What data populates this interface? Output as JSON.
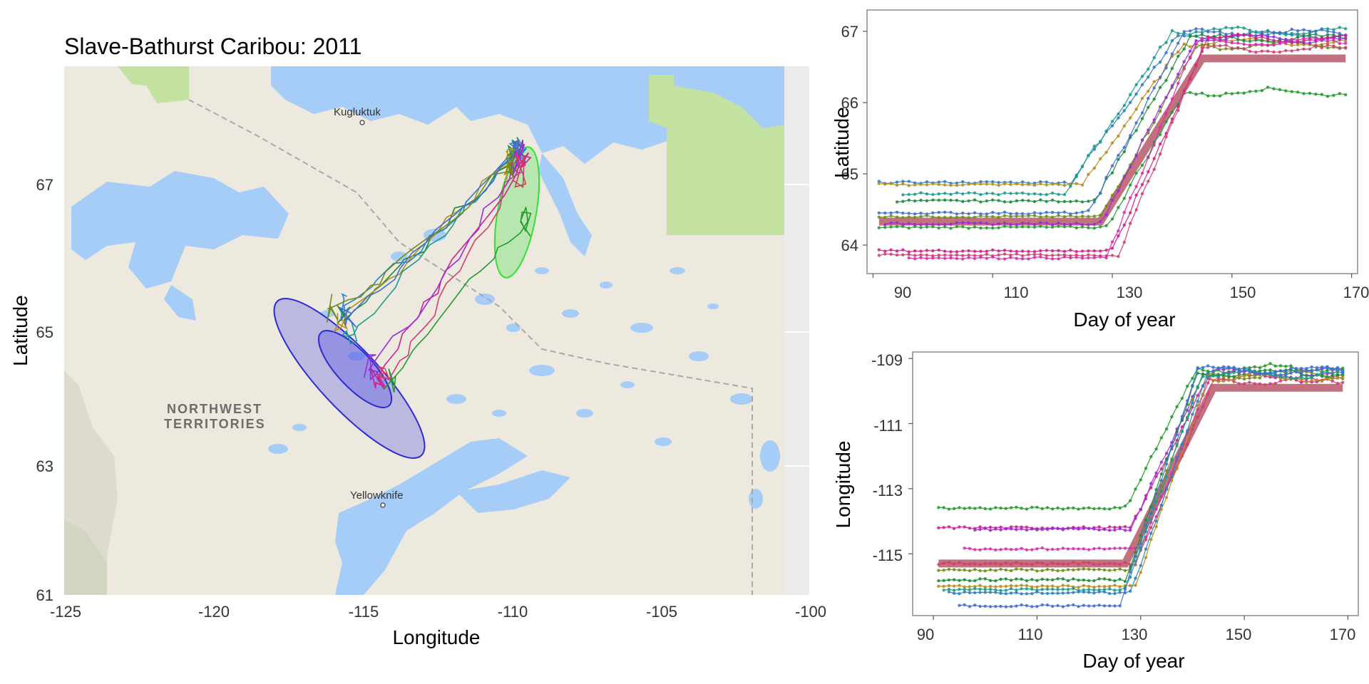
{
  "chart_data": [
    {
      "type": "map",
      "title": "Slave-Bathurst Caribou: 2011",
      "xlabel": "Longitude",
      "ylabel": "Latitude",
      "xlim": [
        -125,
        -100
      ],
      "ylim": [
        61,
        68.2
      ],
      "xticks": [
        "-125",
        "-120",
        "-115",
        "-110",
        "-105",
        "-100"
      ],
      "yticks": [
        "61",
        "63",
        "65",
        "67"
      ],
      "place_labels": [
        "Kugluktuk",
        "Yellowknife"
      ],
      "region_labels": [
        "NORTHWEST",
        "TERRITORIES"
      ],
      "colors": {
        "water": "#a6cdf7",
        "land": "#ede9df",
        "park": "#c3e2a0",
        "outside": "#ebebeb",
        "winter_ellipse": "#2b2bd6",
        "summer_ellipse": "#33e033"
      },
      "ellipses": [
        {
          "name": "winter",
          "center": [
            -115.2,
            64.2
          ],
          "color": "#2b2bd6"
        },
        {
          "name": "winter-inner",
          "center": [
            -115.0,
            64.35
          ],
          "color": "#2b2bd6"
        },
        {
          "name": "summer",
          "center": [
            -110.05,
            66.5
          ],
          "color": "#33e033"
        }
      ],
      "series": [
        {
          "color": "#1a8c3a",
          "start": [
            -115.6,
            64.8
          ],
          "mid": [
            -113.4,
            65.6
          ],
          "end": [
            -109.9,
            66.9
          ]
        },
        {
          "color": "#b58d1c",
          "start": [
            -115.8,
            64.7
          ],
          "mid": [
            -113.0,
            65.7
          ],
          "end": [
            -110.0,
            66.9
          ]
        },
        {
          "color": "#1a9c8c",
          "start": [
            -115.4,
            64.6
          ],
          "mid": [
            -112.8,
            65.6
          ],
          "end": [
            -109.8,
            67.0
          ]
        },
        {
          "color": "#2b7fbf",
          "start": [
            -115.7,
            64.9
          ],
          "mid": [
            -112.6,
            65.8
          ],
          "end": [
            -109.7,
            67.05
          ]
        },
        {
          "color": "#cf1f8c",
          "start": [
            -114.5,
            64.0
          ],
          "mid": [
            -112.4,
            65.2
          ],
          "end": [
            -109.6,
            66.9
          ]
        },
        {
          "color": "#9c2bd6",
          "start": [
            -114.7,
            64.1
          ],
          "mid": [
            -112.0,
            65.3
          ],
          "end": [
            -109.8,
            66.95
          ]
        },
        {
          "color": "#1f9c2b",
          "start": [
            -114.0,
            63.9
          ],
          "mid": [
            -111.6,
            65.2
          ],
          "end": [
            -109.5,
            66.1
          ]
        },
        {
          "color": "#cf3f6f",
          "start": [
            -114.2,
            64.0
          ],
          "mid": [
            -112.2,
            65.0
          ],
          "end": [
            -109.7,
            66.8
          ]
        },
        {
          "color": "#6f8c1a",
          "start": [
            -115.9,
            64.9
          ],
          "mid": [
            -113.6,
            65.5
          ],
          "end": [
            -110.1,
            66.85
          ]
        },
        {
          "color": "#3f6fcf",
          "start": [
            -115.5,
            64.8
          ],
          "mid": [
            -112.9,
            65.7
          ],
          "end": [
            -109.9,
            67.0
          ]
        }
      ]
    },
    {
      "type": "scatter-line",
      "xlabel": "Day of year",
      "ylabel": "Latitude",
      "xlim": [
        89,
        171
      ],
      "ylim": [
        63.6,
        67.3
      ],
      "xticks": [
        "90",
        "110",
        "130",
        "150",
        "170"
      ],
      "yticks": [
        "64",
        "65",
        "66",
        "67"
      ],
      "fit_line": {
        "color": "#b34d5e",
        "x": [
          91,
          128,
          145,
          169
        ],
        "y": [
          64.33,
          64.33,
          66.62,
          66.62
        ]
      },
      "series": [
        {
          "color": "#2b7fbf",
          "baseline": 64.88,
          "start": 91,
          "rise_start": 123,
          "rise_end": 141,
          "plateau": 66.95
        },
        {
          "color": "#b58d1c",
          "baseline": 64.85,
          "start": 91,
          "rise_start": 125,
          "rise_end": 142,
          "plateau": 66.85
        },
        {
          "color": "#1a9c8c",
          "baseline": 64.72,
          "start": 95,
          "rise_start": 122,
          "rise_end": 140,
          "plateau": 67.0
        },
        {
          "color": "#1a8c3a",
          "baseline": 64.62,
          "start": 94,
          "rise_start": 127,
          "rise_end": 143,
          "plateau": 66.9
        },
        {
          "color": "#3f6fcf",
          "baseline": 64.45,
          "start": 91,
          "rise_start": 126,
          "rise_end": 142,
          "plateau": 66.98
        },
        {
          "color": "#6f8c1a",
          "baseline": 64.4,
          "start": 91,
          "rise_start": 128,
          "rise_end": 144,
          "plateau": 66.8
        },
        {
          "color": "#1f9c2b",
          "baseline": 64.25,
          "start": 91,
          "rise_start": 129,
          "rise_end": 142,
          "plateau": 66.15
        },
        {
          "color": "#9c2bd6",
          "baseline": 64.3,
          "start": 92,
          "rise_start": 128,
          "rise_end": 144,
          "plateau": 66.9
        },
        {
          "color": "#cf1f8c",
          "baseline": 63.92,
          "start": 91,
          "rise_start": 130,
          "rise_end": 146,
          "plateau": 66.9
        },
        {
          "color": "#cf3f6f",
          "baseline": 63.86,
          "start": 91,
          "rise_start": 131,
          "rise_end": 145,
          "plateau": 66.75
        },
        {
          "color": "#d62bb0",
          "baseline": 63.82,
          "start": 96,
          "rise_start": 129,
          "rise_end": 144,
          "plateau": 66.85
        }
      ]
    },
    {
      "type": "scatter-line",
      "xlabel": "Day of year",
      "ylabel": "Longitude",
      "xlim": [
        86,
        172
      ],
      "ylim": [
        -116.9,
        -108.8
      ],
      "xticks": [
        "90",
        "110",
        "130",
        "150",
        "170"
      ],
      "yticks": [
        "-109",
        "-111",
        "-113",
        "-115"
      ],
      "fit_line": {
        "color": "#b34d5e",
        "x": [
          91,
          127,
          144,
          169
        ],
        "y": [
          -115.3,
          -115.3,
          -109.9,
          -109.9
        ]
      },
      "series": [
        {
          "color": "#1f9c2b",
          "baseline": -113.6,
          "start": 91,
          "rise_start": 127,
          "rise_end": 141,
          "plateau": -109.3
        },
        {
          "color": "#cf1f8c",
          "baseline": -114.2,
          "start": 91,
          "rise_start": 128,
          "rise_end": 143,
          "plateau": -109.6
        },
        {
          "color": "#9c2bd6",
          "baseline": -114.25,
          "start": 98,
          "rise_start": 128,
          "rise_end": 142,
          "plateau": -109.5
        },
        {
          "color": "#d62bb0",
          "baseline": -114.85,
          "start": 96,
          "rise_start": 130,
          "rise_end": 144,
          "plateau": -109.4
        },
        {
          "color": "#cf3f6f",
          "baseline": -115.3,
          "start": 91,
          "rise_start": 129,
          "rise_end": 144,
          "plateau": -109.7
        },
        {
          "color": "#6f8c1a",
          "baseline": -115.5,
          "start": 91,
          "rise_start": 128,
          "rise_end": 142,
          "plateau": -109.5
        },
        {
          "color": "#1a8c3a",
          "baseline": -115.8,
          "start": 91,
          "rise_start": 127,
          "rise_end": 141,
          "plateau": -109.45
        },
        {
          "color": "#b58d1c",
          "baseline": -116.0,
          "start": 91,
          "rise_start": 129,
          "rise_end": 143,
          "plateau": -109.6
        },
        {
          "color": "#1a9c8c",
          "baseline": -116.1,
          "start": 92,
          "rise_start": 127,
          "rise_end": 142,
          "plateau": -109.5
        },
        {
          "color": "#2b7fbf",
          "baseline": -116.2,
          "start": 93,
          "rise_start": 128,
          "rise_end": 143,
          "plateau": -109.4
        },
        {
          "color": "#3f6fcf",
          "baseline": -116.6,
          "start": 95,
          "rise_start": 126,
          "rise_end": 141,
          "plateau": -109.35
        }
      ]
    }
  ]
}
